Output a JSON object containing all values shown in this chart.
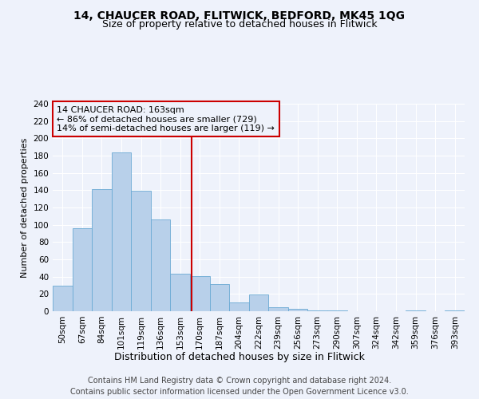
{
  "title1": "14, CHAUCER ROAD, FLITWICK, BEDFORD, MK45 1QG",
  "title2": "Size of property relative to detached houses in Flitwick",
  "xlabel": "Distribution of detached houses by size in Flitwick",
  "ylabel": "Number of detached properties",
  "bar_color": "#b8d0ea",
  "bar_edge_color": "#6aaad4",
  "categories": [
    "50sqm",
    "67sqm",
    "84sqm",
    "101sqm",
    "119sqm",
    "136sqm",
    "153sqm",
    "170sqm",
    "187sqm",
    "204sqm",
    "222sqm",
    "239sqm",
    "256sqm",
    "273sqm",
    "290sqm",
    "307sqm",
    "324sqm",
    "342sqm",
    "359sqm",
    "376sqm",
    "393sqm"
  ],
  "values": [
    30,
    96,
    141,
    184,
    139,
    106,
    43,
    41,
    31,
    10,
    19,
    5,
    3,
    1,
    1,
    0,
    0,
    0,
    1,
    0,
    1
  ],
  "property_size_label": "14 CHAUCER ROAD: 163sqm",
  "annotation_line1": "← 86% of detached houses are smaller (729)",
  "annotation_line2": "14% of semi-detached houses are larger (119) →",
  "vline_color": "#cc0000",
  "annotation_box_color": "#cc0000",
  "footer1": "Contains HM Land Registry data © Crown copyright and database right 2024.",
  "footer2": "Contains public sector information licensed under the Open Government Licence v3.0.",
  "ylim": [
    0,
    240
  ],
  "yticks": [
    0,
    20,
    40,
    60,
    80,
    100,
    120,
    140,
    160,
    180,
    200,
    220,
    240
  ],
  "bg_color": "#eef2fb",
  "grid_color": "#ffffff",
  "title1_fontsize": 10,
  "title2_fontsize": 9,
  "xlabel_fontsize": 9,
  "ylabel_fontsize": 8,
  "tick_fontsize": 7.5,
  "footer_fontsize": 7,
  "annot_fontsize": 8
}
